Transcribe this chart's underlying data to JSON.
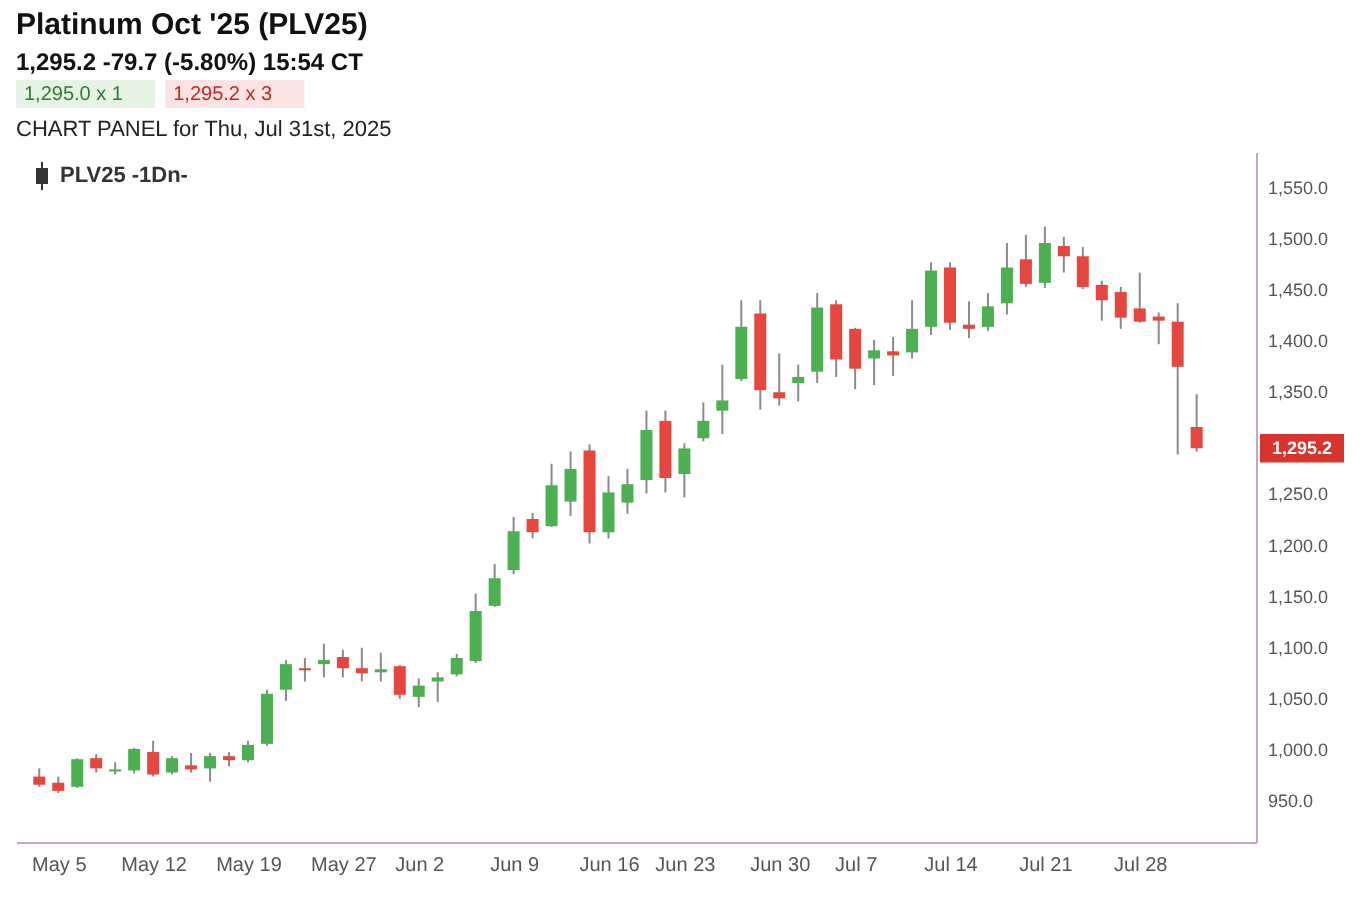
{
  "chart_data": {
    "type": "candlestick",
    "title": "Platinum Oct '25 (PLV25)",
    "subtitle": "1,295.2 -79.7 (-5.80%) 15:54 CT",
    "annotations": [
      "1,295.0 x 1",
      "1,295.2 x 3",
      "CHART PANEL for Thu, Jul 31st, 2025",
      "1,295.2"
    ],
    "categories": [
      null,
      "May 5",
      null,
      null,
      null,
      null,
      "May 12",
      null,
      null,
      null,
      null,
      "May 19",
      null,
      null,
      null,
      null,
      "May 27",
      null,
      null,
      null,
      "Jun 2",
      null,
      null,
      null,
      null,
      "Jun 9",
      null,
      null,
      null,
      null,
      "Jun 16",
      null,
      null,
      null,
      "Jun 23",
      null,
      null,
      null,
      null,
      "Jun 30",
      null,
      null,
      null,
      "Jul 7",
      null,
      null,
      null,
      null,
      "Jul 14",
      null,
      null,
      null,
      null,
      "Jul 21",
      null,
      null,
      null,
      null,
      "Jul 28",
      null,
      null,
      null
    ],
    "series": [
      {
        "name": "PLV25 -1Dn-",
        "ohlc": [
          [
            974,
            982,
            964,
            966
          ],
          [
            968,
            974,
            958,
            960
          ],
          [
            964,
            992,
            963,
            991
          ],
          [
            992,
            996,
            978,
            982
          ],
          [
            979,
            988,
            976,
            981
          ],
          [
            980,
            1002,
            977,
            1001
          ],
          [
            998,
            1009,
            974,
            976
          ],
          [
            978,
            994,
            976,
            992
          ],
          [
            985,
            997,
            978,
            981
          ],
          [
            982,
            997,
            969,
            994
          ],
          [
            994,
            998,
            984,
            990
          ],
          [
            990,
            1009,
            988,
            1005
          ],
          [
            1006,
            1059,
            1004,
            1055
          ],
          [
            1059,
            1088,
            1048,
            1084
          ],
          [
            1080,
            1090,
            1067,
            1078
          ],
          [
            1084,
            1104,
            1071,
            1088
          ],
          [
            1091,
            1098,
            1071,
            1080
          ],
          [
            1080,
            1100,
            1067,
            1075
          ],
          [
            1076,
            1095,
            1067,
            1079
          ],
          [
            1082,
            1083,
            1050,
            1054
          ],
          [
            1052,
            1070,
            1042,
            1063
          ],
          [
            1067,
            1076,
            1047,
            1071
          ],
          [
            1074,
            1094,
            1072,
            1090
          ],
          [
            1087,
            1153,
            1085,
            1136
          ],
          [
            1141,
            1182,
            1140,
            1168
          ],
          [
            1176,
            1228,
            1172,
            1214
          ],
          [
            1226,
            1232,
            1207,
            1213
          ],
          [
            1219,
            1280,
            1218,
            1259
          ],
          [
            1243,
            1292,
            1229,
            1275
          ],
          [
            1293,
            1299,
            1202,
            1213
          ],
          [
            1213,
            1268,
            1207,
            1252
          ],
          [
            1242,
            1275,
            1231,
            1260
          ],
          [
            1264,
            1332,
            1251,
            1313
          ],
          [
            1322,
            1332,
            1252,
            1266
          ],
          [
            1270,
            1300,
            1247,
            1295
          ],
          [
            1305,
            1340,
            1302,
            1322
          ],
          [
            1332,
            1377,
            1309,
            1342
          ],
          [
            1363,
            1440,
            1361,
            1414
          ],
          [
            1427,
            1440,
            1333,
            1352
          ],
          [
            1350,
            1388,
            1337,
            1344
          ],
          [
            1359,
            1377,
            1341,
            1365
          ],
          [
            1370,
            1447,
            1359,
            1433
          ],
          [
            1436,
            1440,
            1365,
            1382
          ],
          [
            1412,
            1413,
            1353,
            1373
          ],
          [
            1383,
            1401,
            1357,
            1391
          ],
          [
            1390,
            1404,
            1366,
            1386
          ],
          [
            1389,
            1440,
            1383,
            1412
          ],
          [
            1414,
            1477,
            1406,
            1469
          ],
          [
            1472,
            1477,
            1411,
            1418
          ],
          [
            1416,
            1439,
            1403,
            1412
          ],
          [
            1414,
            1447,
            1410,
            1434
          ],
          [
            1437,
            1496,
            1426,
            1472
          ],
          [
            1480,
            1504,
            1453,
            1456
          ],
          [
            1457,
            1512,
            1452,
            1496
          ],
          [
            1493,
            1502,
            1467,
            1483
          ],
          [
            1483,
            1492,
            1451,
            1453
          ],
          [
            1455,
            1459,
            1420,
            1440
          ],
          [
            1448,
            1453,
            1412,
            1423
          ],
          [
            1432,
            1467,
            1418,
            1419
          ],
          [
            1424,
            1428,
            1397,
            1420
          ],
          [
            1419,
            1437,
            1289,
            1374.9
          ],
          [
            1316,
            1348,
            1292,
            1295.2
          ]
        ],
        "colors": [
          "#e5473f",
          "#e5473f",
          "#4caf50",
          "#e5473f",
          "#4caf50",
          "#4caf50",
          "#e5473f",
          "#4caf50",
          "#e5473f",
          "#4caf50",
          "#e5473f",
          "#4caf50",
          "#4caf50",
          "#4caf50",
          "#e5473f",
          "#4caf50",
          "#e5473f",
          "#e5473f",
          "#4caf50",
          "#e5473f",
          "#4caf50",
          "#4caf50",
          "#4caf50",
          "#4caf50",
          "#4caf50",
          "#4caf50",
          "#e5473f",
          "#4caf50",
          "#4caf50",
          "#e5473f",
          "#4caf50",
          "#4caf50",
          "#4caf50",
          "#e5473f",
          "#4caf50",
          "#4caf50",
          "#4caf50",
          "#4caf50",
          "#e5473f",
          "#e5473f",
          "#4caf50",
          "#4caf50",
          "#e5473f",
          "#e5473f",
          "#4caf50",
          "#e5473f",
          "#4caf50",
          "#4caf50",
          "#e5473f",
          "#e5473f",
          "#4caf50",
          "#4caf50",
          "#e5473f",
          "#4caf50",
          "#e5473f",
          "#e5473f",
          "#e5473f",
          "#e5473f",
          "#e5473f",
          "#e5473f",
          "#e5473f",
          "#e5473f"
        ]
      }
    ],
    "ylim": [
      910,
      1585
    ],
    "yticks": [
      {
        "value": 950,
        "label": "950.0"
      },
      {
        "value": 1000,
        "label": "1,000.0"
      },
      {
        "value": 1050,
        "label": "1,050.0"
      },
      {
        "value": 1100,
        "label": "1,100.0"
      },
      {
        "value": 1150,
        "label": "1,150.0"
      },
      {
        "value": 1200,
        "label": "1,200.0"
      },
      {
        "value": 1250,
        "label": "1,250.0"
      },
      {
        "value": 1350,
        "label": "1,350.0"
      },
      {
        "value": 1400,
        "label": "1,400.0"
      },
      {
        "value": 1450,
        "label": "1,450.0"
      },
      {
        "value": 1500,
        "label": "1,500.0"
      },
      {
        "value": 1550,
        "label": "1,550.0"
      }
    ],
    "grid": false,
    "legend": "top left"
  }
}
